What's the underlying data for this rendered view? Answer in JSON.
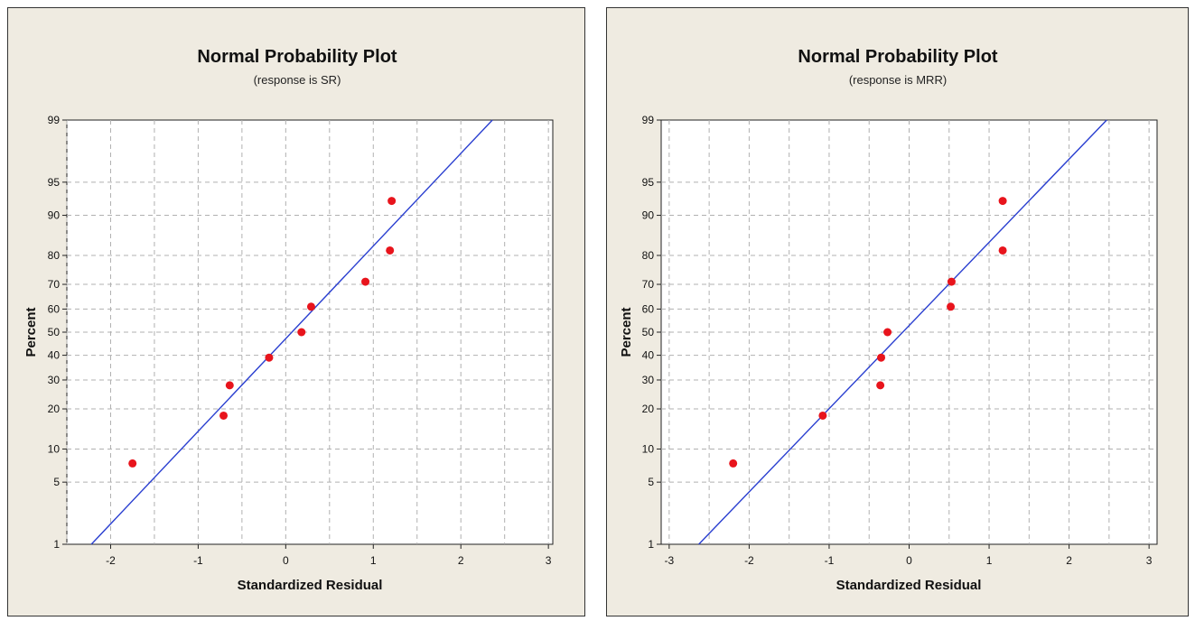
{
  "colors": {
    "panel_bg": "#efebe1",
    "plot_bg": "#ffffff",
    "grid": "#b0b0b0",
    "line": "#2a3fd0",
    "point": "#e8141c"
  },
  "chart_data": [
    {
      "type": "scatter",
      "title": "Normal Probability Plot",
      "subtitle": "(response is SR)",
      "xlabel": "Standardized Residual",
      "ylabel": "Percent",
      "xlim": [
        -2.5,
        3.05
      ],
      "ylim": [
        1,
        99
      ],
      "y_scale": "normal-probability",
      "grid": true,
      "x_ticks": [
        -2,
        -1,
        0,
        1,
        2,
        3
      ],
      "x_tick_labels": [
        "-2",
        "-1",
        "0",
        "1",
        "2",
        "3"
      ],
      "y_ticks": [
        1,
        5,
        10,
        20,
        30,
        40,
        50,
        60,
        70,
        80,
        90,
        95,
        99
      ],
      "y_tick_labels": [
        "1",
        "5",
        "10",
        "20",
        "30",
        "40",
        "50",
        "60",
        "70",
        "80",
        "90",
        "95",
        "99"
      ],
      "points": [
        {
          "x": -1.75,
          "y": 7.5
        },
        {
          "x": -0.71,
          "y": 18
        },
        {
          "x": -0.64,
          "y": 28
        },
        {
          "x": -0.19,
          "y": 39
        },
        {
          "x": 0.18,
          "y": 50
        },
        {
          "x": 0.29,
          "y": 61
        },
        {
          "x": 0.91,
          "y": 71
        },
        {
          "x": 1.19,
          "y": 81.5
        },
        {
          "x": 1.21,
          "y": 92.5
        }
      ],
      "fit_line": [
        {
          "x": -2.22,
          "y": 1
        },
        {
          "x": 2.36,
          "y": 99
        }
      ]
    },
    {
      "type": "scatter",
      "title": "Normal Probability Plot",
      "subtitle": "(response is MRR)",
      "xlabel": "Standardized Residual",
      "ylabel": "Percent",
      "xlim": [
        -3.1,
        3.1
      ],
      "ylim": [
        1,
        99
      ],
      "y_scale": "normal-probability",
      "grid": true,
      "x_ticks": [
        -3,
        -2,
        -1,
        0,
        1,
        2,
        3
      ],
      "x_tick_labels": [
        "-3",
        "-2",
        "-1",
        "0",
        "1",
        "2",
        "3"
      ],
      "y_ticks": [
        1,
        5,
        10,
        20,
        30,
        40,
        50,
        60,
        70,
        80,
        90,
        95,
        99
      ],
      "y_tick_labels": [
        "1",
        "5",
        "10",
        "20",
        "30",
        "40",
        "50",
        "60",
        "70",
        "80",
        "90",
        "95",
        "99"
      ],
      "points": [
        {
          "x": -2.2,
          "y": 7.5
        },
        {
          "x": -1.08,
          "y": 18
        },
        {
          "x": -0.36,
          "y": 28
        },
        {
          "x": -0.35,
          "y": 39
        },
        {
          "x": -0.27,
          "y": 50
        },
        {
          "x": 0.52,
          "y": 61
        },
        {
          "x": 0.53,
          "y": 71
        },
        {
          "x": 1.17,
          "y": 81.5
        },
        {
          "x": 1.17,
          "y": 92.5
        }
      ],
      "fit_line": [
        {
          "x": -2.63,
          "y": 1
        },
        {
          "x": 2.47,
          "y": 99
        }
      ]
    }
  ]
}
